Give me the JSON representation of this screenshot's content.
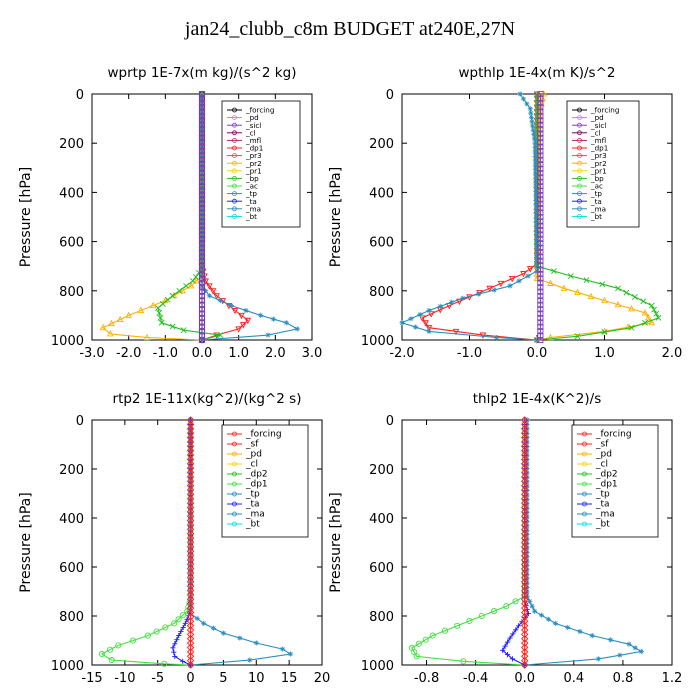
{
  "figure_title": "jan24_clubb_c8m  BUDGET at240E,27N",
  "chart_data": [
    {
      "type": "line",
      "panel": "top-left",
      "title": "wprtp  1E-7x(m kg)/(s^2 kg)",
      "ylabel": "Pressure [hPa]",
      "xlabel": "",
      "xlim": [
        -3.0,
        3.0
      ],
      "ylim": [
        0,
        1000
      ],
      "y_reversed": true,
      "xticks": [
        "-3.0",
        "-2.0",
        "-1.0",
        "0.0",
        "1.0",
        "2.0",
        "3.0"
      ],
      "yticks": [
        "0",
        "200",
        "400",
        "600",
        "800",
        "1000"
      ],
      "legend_position": "top-right",
      "legend": [
        "_forcing",
        "_pd",
        "_sicl",
        "_cl",
        "_mfl",
        "_dp1",
        "_pr3",
        "_pr2",
        "_pr1",
        "_bp",
        "_ac",
        "_tp",
        "_ta",
        "_ma",
        "_bt"
      ],
      "series": [
        {
          "name": "_dp1",
          "color": "#ff2020",
          "marker": "triangle-down",
          "points": [
            [
              0,
              0
            ],
            [
              0,
              700
            ],
            [
              0.1,
              760
            ],
            [
              0.4,
              820
            ],
            [
              0.9,
              880
            ],
            [
              1.25,
              920
            ],
            [
              1.0,
              955
            ],
            [
              0.4,
              980
            ],
            [
              0,
              1000
            ]
          ]
        },
        {
          "name": "_pr2",
          "color": "#ffb000",
          "marker": "triangle",
          "points": [
            [
              0,
              0
            ],
            [
              0,
              740
            ],
            [
              -0.3,
              780
            ],
            [
              -1.0,
              840
            ],
            [
              -2.0,
              900
            ],
            [
              -2.7,
              950
            ],
            [
              -2.5,
              975
            ],
            [
              -1.5,
              990
            ],
            [
              0,
              1000
            ]
          ]
        },
        {
          "name": "_ac",
          "color": "#20c020",
          "marker": "x",
          "points": [
            [
              0,
              0
            ],
            [
              0,
              710
            ],
            [
              -0.25,
              760
            ],
            [
              -0.8,
              820
            ],
            [
              -1.2,
              870
            ],
            [
              -1.1,
              930
            ],
            [
              -0.5,
              960
            ],
            [
              0.5,
              980
            ],
            [
              0,
              1000
            ]
          ]
        },
        {
          "name": "_tp",
          "color": "#2a8ec0",
          "marker": "asterisk",
          "points": [
            [
              0,
              0
            ],
            [
              0,
              780
            ],
            [
              0.2,
              820
            ],
            [
              0.8,
              860
            ],
            [
              1.6,
              900
            ],
            [
              2.3,
              930
            ],
            [
              2.6,
              955
            ],
            [
              1.8,
              980
            ],
            [
              0,
              1000
            ]
          ]
        },
        {
          "name": "_forcing",
          "color": "#000000",
          "marker": "circle",
          "points": [
            [
              0,
              0
            ],
            [
              0,
              1000
            ]
          ]
        },
        {
          "name": "_sicl",
          "color": "#8040c0",
          "marker": "square",
          "points": [
            [
              0,
              0
            ],
            [
              0,
              1000
            ]
          ]
        }
      ]
    },
    {
      "type": "line",
      "panel": "top-right",
      "title": "wpthlp  1E-4x(m K)/s^2",
      "ylabel": "Pressure [hPa]",
      "xlabel": "",
      "xlim": [
        -2.0,
        2.0
      ],
      "ylim": [
        0,
        1000
      ],
      "y_reversed": true,
      "xticks": [
        "-2.0",
        "-1.0",
        "0.0",
        "1.0",
        "2.0"
      ],
      "yticks": [
        "0",
        "200",
        "400",
        "600",
        "800",
        "1000"
      ],
      "legend_position": "top-right",
      "legend": [
        "_forcing",
        "_pd",
        "_sicl",
        "_cl",
        "_mfl",
        "_dp1",
        "_pr3",
        "_pr2",
        "_pr1",
        "_bp",
        "_ac",
        "_tp",
        "_ta",
        "_ma",
        "_bt"
      ],
      "series": [
        {
          "name": "_dp1",
          "color": "#ff2020",
          "marker": "triangle-down",
          "points": [
            [
              0,
              0
            ],
            [
              0,
              690
            ],
            [
              -0.2,
              730
            ],
            [
              -0.7,
              790
            ],
            [
              -1.3,
              860
            ],
            [
              -1.7,
              910
            ],
            [
              -1.6,
              950
            ],
            [
              -0.8,
              980
            ],
            [
              0,
              1000
            ]
          ]
        },
        {
          "name": "_pr2",
          "color": "#ffb000",
          "marker": "triangle",
          "points": [
            [
              0.1,
              0
            ],
            [
              0.05,
              60
            ],
            [
              0.02,
              200
            ],
            [
              0,
              750
            ],
            [
              0.4,
              790
            ],
            [
              1.0,
              840
            ],
            [
              1.6,
              890
            ],
            [
              1.7,
              930
            ],
            [
              1.0,
              965
            ],
            [
              0.2,
              990
            ],
            [
              0,
              1000
            ]
          ]
        },
        {
          "name": "_ac",
          "color": "#20c020",
          "marker": "x",
          "points": [
            [
              0,
              0
            ],
            [
              0,
              700
            ],
            [
              0.5,
              740
            ],
            [
              1.2,
              790
            ],
            [
              1.7,
              860
            ],
            [
              1.8,
              910
            ],
            [
              1.4,
              950
            ],
            [
              0.6,
              985
            ],
            [
              0,
              1000
            ]
          ]
        },
        {
          "name": "_tp",
          "color": "#2a8ec0",
          "marker": "asterisk",
          "points": [
            [
              -0.25,
              0
            ],
            [
              -0.1,
              60
            ],
            [
              -0.03,
              200
            ],
            [
              0,
              720
            ],
            [
              -0.4,
              780
            ],
            [
              -1.1,
              830
            ],
            [
              -1.6,
              880
            ],
            [
              -2.0,
              930
            ],
            [
              -1.6,
              965
            ],
            [
              -0.6,
              990
            ],
            [
              0,
              1000
            ]
          ]
        },
        {
          "name": "_sicl",
          "color": "#8040c0",
          "marker": "square",
          "points": [
            [
              0.05,
              0
            ],
            [
              0.05,
              1000
            ]
          ]
        }
      ]
    },
    {
      "type": "line",
      "panel": "bottom-left",
      "title": "rtp2  1E-11x(kg^2)/(kg^2 s)",
      "ylabel": "Pressure [hPa]",
      "xlabel": "",
      "xlim": [
        -15,
        20
      ],
      "ylim": [
        0,
        1000
      ],
      "y_reversed": true,
      "xticks": [
        "-15",
        "-10",
        "-5",
        "0",
        "5",
        "10",
        "15",
        "20"
      ],
      "yticks": [
        "0",
        "200",
        "400",
        "600",
        "800",
        "1000"
      ],
      "legend_position": "top-right",
      "legend": [
        "_forcing",
        "_sf",
        "_pd",
        "_cl",
        "_dp2",
        "_dp1",
        "_tp",
        "_ta",
        "_ma",
        "_bt"
      ],
      "series": [
        {
          "name": "_dp1",
          "color": "#40e040",
          "marker": "circle",
          "points": [
            [
              0,
              0
            ],
            [
              0,
              730
            ],
            [
              -0.5,
              780
            ],
            [
              -2.5,
              830
            ],
            [
              -6.5,
              880
            ],
            [
              -11,
              920
            ],
            [
              -13.5,
              955
            ],
            [
              -12,
              980
            ],
            [
              -4,
              995
            ],
            [
              0,
              1000
            ]
          ]
        },
        {
          "name": "_tp",
          "color": "#2a8ec0",
          "marker": "asterisk",
          "points": [
            [
              0,
              0
            ],
            [
              0,
              790
            ],
            [
              2,
              830
            ],
            [
              5,
              870
            ],
            [
              10,
              910
            ],
            [
              14,
              935
            ],
            [
              15.2,
              955
            ],
            [
              9,
              980
            ],
            [
              0,
              1000
            ]
          ]
        },
        {
          "name": "_ta",
          "color": "#2020ff",
          "marker": "plus",
          "points": [
            [
              0,
              0
            ],
            [
              0,
              780
            ],
            [
              -0.8,
              830
            ],
            [
              -1.8,
              880
            ],
            [
              -2.7,
              930
            ],
            [
              -2.4,
              965
            ],
            [
              -1.2,
              985
            ],
            [
              0,
              1000
            ]
          ]
        },
        {
          "name": "_forcing",
          "color": "#ff2020",
          "marker": "diamond",
          "points": [
            [
              0,
              0
            ],
            [
              0,
              1000
            ]
          ]
        }
      ]
    },
    {
      "type": "line",
      "panel": "bottom-right",
      "title": "thlp2  1E-4x(K^2)/s",
      "ylabel": "Pressure [hPa]",
      "xlabel": "",
      "xlim": [
        -1.0,
        1.2
      ],
      "ylim": [
        0,
        1000
      ],
      "y_reversed": true,
      "xticks": [
        "-0.8",
        "-0.4",
        "0.0",
        "0.4",
        "0.8",
        "1.2"
      ],
      "yticks": [
        "0",
        "200",
        "400",
        "600",
        "800",
        "1000"
      ],
      "legend_position": "top-right",
      "legend": [
        "_forcing",
        "_sf",
        "_pd",
        "_cl",
        "_dp2",
        "_dp1",
        "_tp",
        "_ta",
        "_ma",
        "_bt"
      ],
      "series": [
        {
          "name": "_dp1",
          "color": "#40e040",
          "marker": "circle",
          "points": [
            [
              0,
              0
            ],
            [
              0,
              720
            ],
            [
              -0.15,
              760
            ],
            [
              -0.45,
              820
            ],
            [
              -0.75,
              880
            ],
            [
              -0.92,
              930
            ],
            [
              -0.88,
              965
            ],
            [
              -0.5,
              985
            ],
            [
              0,
              1000
            ]
          ]
        },
        {
          "name": "_tp",
          "color": "#2a8ec0",
          "marker": "asterisk",
          "points": [
            [
              0.02,
              0
            ],
            [
              0.02,
              720
            ],
            [
              0.08,
              780
            ],
            [
              0.25,
              830
            ],
            [
              0.55,
              880
            ],
            [
              0.85,
              915
            ],
            [
              0.95,
              945
            ],
            [
              0.6,
              975
            ],
            [
              0,
              1000
            ]
          ]
        },
        {
          "name": "_ta",
          "color": "#2020ff",
          "marker": "plus",
          "points": [
            [
              0,
              0
            ],
            [
              0,
              740
            ],
            [
              0.03,
              790
            ],
            [
              -0.05,
              840
            ],
            [
              -0.12,
              890
            ],
            [
              -0.18,
              940
            ],
            [
              -0.1,
              975
            ],
            [
              0,
              1000
            ]
          ]
        },
        {
          "name": "_forcing",
          "color": "#ff2020",
          "marker": "diamond",
          "points": [
            [
              0,
              0
            ],
            [
              0,
              1000
            ]
          ]
        }
      ]
    }
  ]
}
